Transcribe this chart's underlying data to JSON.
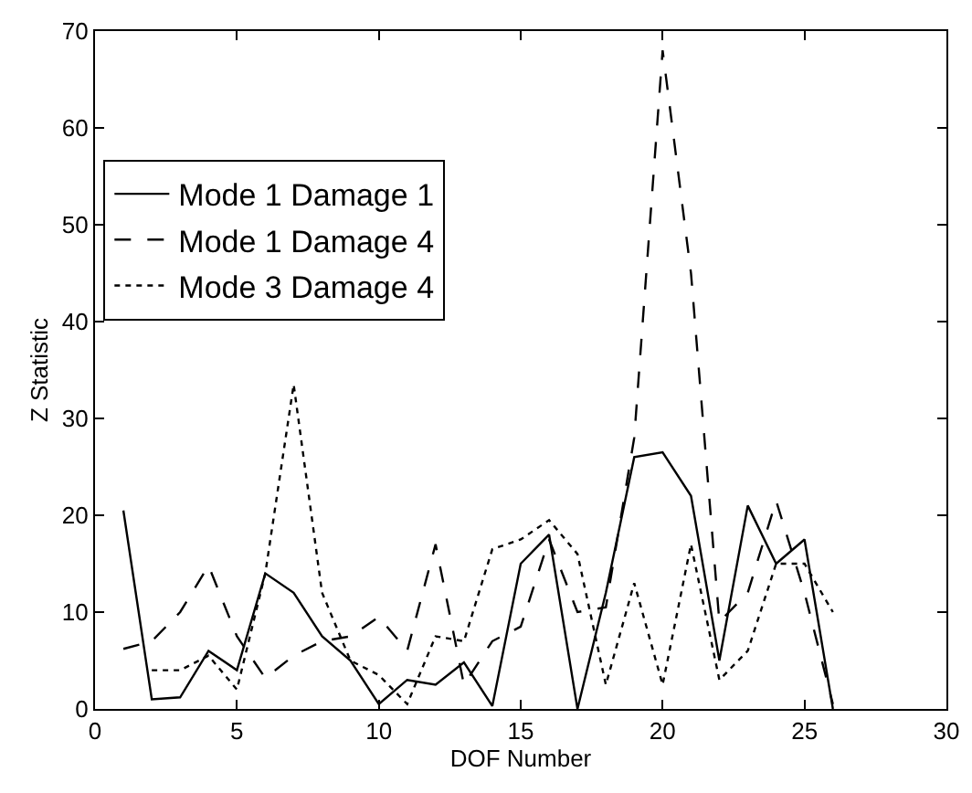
{
  "chart_data": {
    "type": "line",
    "xlabel": "DOF Number",
    "ylabel": "Z Statistic",
    "x": [
      1,
      2,
      3,
      4,
      5,
      6,
      7,
      8,
      9,
      10,
      11,
      12,
      13,
      14,
      15,
      16,
      17,
      18,
      19,
      20,
      21,
      22,
      23,
      24,
      25,
      26
    ],
    "series": [
      {
        "name": "Mode 1 Damage 1",
        "color": "#000000",
        "line_style": "solid",
        "values": [
          20.5,
          1,
          1.2,
          6,
          4,
          14,
          12,
          7.5,
          5,
          0.5,
          3,
          2.5,
          4.8,
          0.3,
          15,
          18,
          0,
          12,
          26,
          26.5,
          22,
          5,
          21,
          15,
          17.5,
          0
        ]
      },
      {
        "name": "Mode 1 Damage 4",
        "color": "#000000",
        "line_style": "dashed",
        "values": [
          6.2,
          7,
          10,
          14.8,
          7.5,
          3.2,
          5.5,
          7,
          7.5,
          9.5,
          6,
          17,
          2.5,
          7,
          8.5,
          17.5,
          10,
          10.5,
          28,
          68,
          45,
          9,
          12,
          21.5,
          12,
          0.5
        ]
      },
      {
        "name": "Mode 3 Damage 4",
        "color": "#000000",
        "line_style": "dotted",
        "values": [
          null,
          4,
          4,
          5.5,
          2,
          14,
          33.5,
          12,
          5,
          3.5,
          0.5,
          7.5,
          7,
          16.5,
          17.5,
          19.5,
          16,
          2.5,
          13,
          2.5,
          17,
          3,
          6,
          15,
          15,
          10
        ]
      }
    ],
    "xlim": [
      0,
      30
    ],
    "xticks": [
      0,
      5,
      10,
      15,
      20,
      25,
      30
    ],
    "ylim": [
      0,
      70
    ],
    "yticks": [
      0,
      10,
      20,
      30,
      40,
      50,
      60,
      70
    ],
    "grid": false,
    "legend": "top left",
    "marker": "none"
  }
}
